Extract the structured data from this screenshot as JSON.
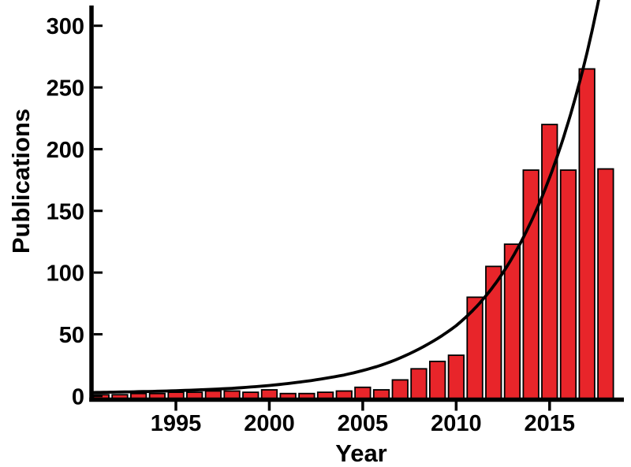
{
  "figure": {
    "background": "#ffffff",
    "kind": "scientific bar chart with exponential fit curve"
  },
  "chart_data": {
    "type": "bar",
    "title": "",
    "xlabel": "Year",
    "ylabel": "Publications",
    "legend": "none",
    "grid": false,
    "bar_color": "#e8252a",
    "bar_outline_color": "#000000",
    "fit_curve_color": "#000000",
    "axis_color": "#000000",
    "xlim": [
      1990.5,
      2019
    ],
    "ylim": [
      0,
      322
    ],
    "x_ticks": [
      "1995",
      "2000",
      "2005",
      "2010",
      "2015"
    ],
    "x_tick_years": [
      1995,
      2000,
      2005,
      2010,
      2015
    ],
    "y_ticks": [
      "0",
      "50",
      "100",
      "150",
      "200",
      "250",
      "300"
    ],
    "y_tick_values": [
      0,
      50,
      100,
      150,
      200,
      250,
      300
    ],
    "categories": [
      1991,
      1992,
      1993,
      1994,
      1995,
      1996,
      1997,
      1998,
      1999,
      2000,
      2001,
      2002,
      2003,
      2004,
      2005,
      2006,
      2007,
      2008,
      2009,
      2010,
      2011,
      2012,
      2013,
      2014,
      2015,
      2016,
      2017,
      2018
    ],
    "values": [
      1,
      1,
      2,
      2,
      3,
      3,
      4,
      4,
      3,
      5,
      2,
      2,
      3,
      4,
      7,
      5,
      13,
      22,
      28,
      33,
      80,
      105,
      123,
      183,
      220,
      183,
      265,
      184
    ],
    "fit_curve": {
      "name": "exponential-fit",
      "points": [
        [
          1990.6,
          2.8
        ],
        [
          1992,
          3.2
        ],
        [
          1994,
          3.8
        ],
        [
          1996,
          4.8
        ],
        [
          1998,
          6.2
        ],
        [
          2000,
          8.5
        ],
        [
          2002,
          12
        ],
        [
          2004,
          17
        ],
        [
          2006,
          25
        ],
        [
          2008,
          38
        ],
        [
          2010,
          57
        ],
        [
          2011,
          71
        ],
        [
          2012,
          89
        ],
        [
          2013,
          112
        ],
        [
          2014,
          141
        ],
        [
          2015,
          177
        ],
        [
          2016,
          222
        ],
        [
          2017,
          278
        ],
        [
          2017.72,
          328
        ]
      ]
    }
  }
}
